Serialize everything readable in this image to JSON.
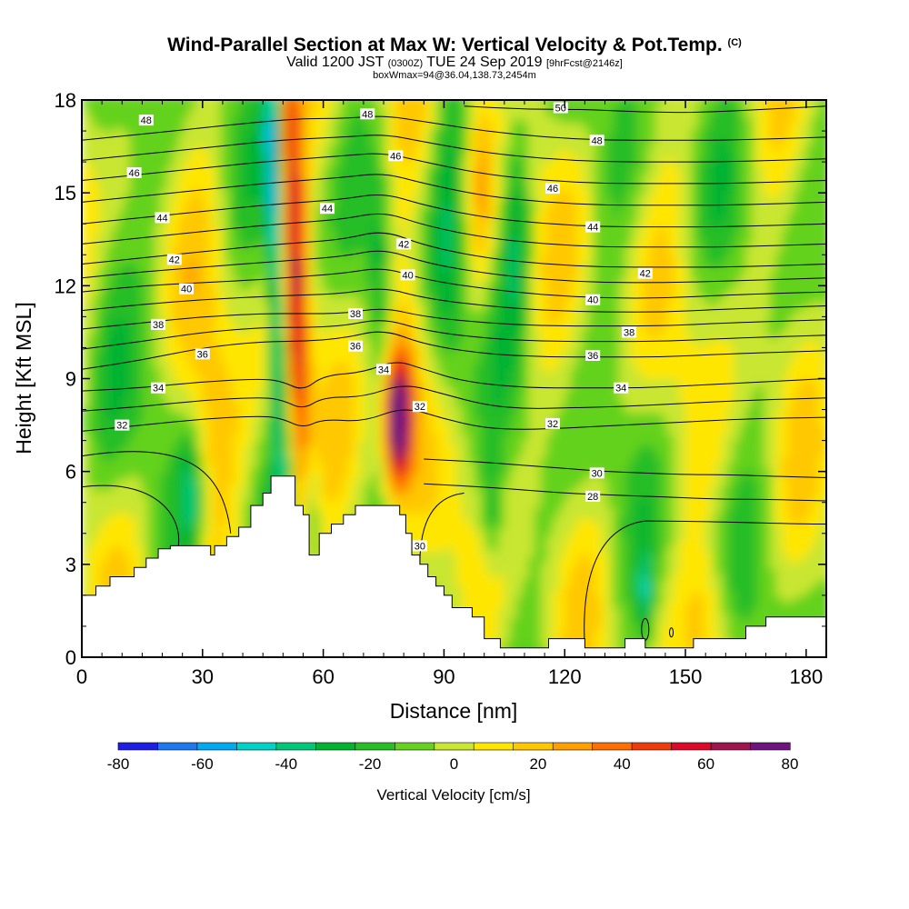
{
  "chart_data": {
    "type": "heatmap",
    "title": "Wind-Parallel Section at Max W: Vertical Velocity & Pot.Temp.",
    "title_mark": "(C)",
    "subtitle_main": "Valid 1200 JST",
    "subtitle_utc": "(0300Z)",
    "subtitle_date": "TUE 24 Sep 2019",
    "subtitle_fcst": "[9hrFcst@2146z]",
    "subtitle2": "boxWmax=94@36.04,138.73,2454m",
    "xlabel": "Distance [nm]",
    "ylabel": "Height [Kft MSL]",
    "xlim": [
      0,
      185
    ],
    "ylim": [
      0,
      18
    ],
    "x_ticks": [
      0,
      30,
      60,
      90,
      120,
      150,
      180
    ],
    "y_ticks": [
      0,
      3,
      6,
      9,
      12,
      15,
      18
    ],
    "fill_variable": "Vertical Velocity [cm/s]",
    "contour_variable": "Potential Temperature (C)",
    "colorbar": {
      "label": "Vertical Velocity [cm/s]",
      "ticks": [
        -80,
        -60,
        -40,
        -20,
        0,
        20,
        40,
        60,
        80
      ],
      "levels": [
        -80,
        -70,
        -60,
        -50,
        -40,
        -30,
        -20,
        -10,
        0,
        10,
        20,
        30,
        40,
        50,
        60,
        70,
        80
      ],
      "colors": [
        "#1e1ee6",
        "#1e78f0",
        "#00aaf0",
        "#00d2c8",
        "#00c878",
        "#00b432",
        "#28be28",
        "#64d21e",
        "#c8e632",
        "#ffe600",
        "#ffc800",
        "#ffa000",
        "#ff6e00",
        "#f03c0a",
        "#dc0a28",
        "#a01450",
        "#6e147d"
      ]
    },
    "theta_contours": [
      {
        "level": 28,
        "label": "28",
        "x": [
          85,
          100,
          110,
          120,
          130,
          140,
          150,
          160,
          170,
          185
        ],
        "y": [
          5.6,
          5.5,
          5.4,
          5.3,
          5.25,
          5.2,
          5.15,
          5.1,
          5.1,
          5.05
        ]
      },
      {
        "level": 30,
        "label": "30",
        "x": [
          85,
          100,
          110,
          120,
          130,
          140,
          150,
          160,
          170,
          185
        ],
        "y": [
          6.4,
          6.3,
          6.2,
          6.1,
          6.0,
          5.95,
          5.9,
          5.9,
          5.85,
          5.8
        ]
      },
      {
        "level": 32,
        "label": "32",
        "x": [
          0,
          15,
          30,
          45,
          50,
          55,
          60,
          70,
          80,
          90,
          100,
          110,
          120,
          135,
          150,
          165,
          185
        ],
        "y": [
          7.3,
          7.5,
          7.7,
          7.8,
          7.7,
          7.4,
          7.7,
          7.6,
          8.1,
          7.7,
          7.4,
          7.35,
          7.4,
          7.5,
          7.6,
          7.7,
          7.75
        ]
      },
      {
        "level": 34,
        "label": "34",
        "x": [
          0,
          15,
          30,
          45,
          50,
          55,
          60,
          70,
          78,
          85,
          95,
          110,
          125,
          140,
          155,
          170,
          185
        ],
        "y": [
          8.6,
          8.7,
          8.9,
          9.0,
          8.9,
          8.6,
          9.1,
          9.2,
          9.6,
          9.3,
          8.9,
          8.7,
          8.7,
          8.7,
          8.8,
          8.9,
          9.0
        ]
      },
      {
        "level": 36,
        "label": "36",
        "x": [
          0,
          15,
          30,
          45,
          55,
          65,
          75,
          85,
          100,
          115,
          130,
          145,
          160,
          185
        ],
        "y": [
          9.3,
          9.6,
          10.0,
          10.2,
          10.2,
          10.3,
          10.6,
          10.1,
          9.8,
          9.7,
          9.7,
          9.7,
          9.8,
          9.9
        ]
      },
      {
        "level": 38,
        "label": "38",
        "x": [
          0,
          15,
          30,
          45,
          55,
          65,
          75,
          85,
          100,
          115,
          130,
          145,
          160,
          185
        ],
        "y": [
          10.6,
          10.8,
          11.0,
          11.1,
          11.1,
          11.1,
          11.3,
          11.0,
          10.8,
          10.7,
          10.7,
          10.7,
          10.8,
          10.9
        ]
      },
      {
        "level": 40,
        "label": "40",
        "x": [
          0,
          15,
          30,
          45,
          55,
          65,
          75,
          85,
          100,
          115,
          130,
          145,
          160,
          185
        ],
        "y": [
          11.8,
          12.0,
          12.1,
          12.2,
          12.3,
          12.4,
          12.6,
          12.2,
          11.9,
          11.7,
          11.6,
          11.6,
          11.7,
          11.8
        ]
      },
      {
        "level": 42,
        "label": "42",
        "x": [
          0,
          15,
          30,
          45,
          55,
          65,
          75,
          85,
          100,
          115,
          130,
          145,
          160,
          185
        ],
        "y": [
          12.7,
          12.9,
          13.1,
          13.3,
          13.4,
          13.5,
          13.8,
          13.3,
          12.9,
          12.7,
          12.6,
          12.6,
          12.6,
          12.7
        ]
      },
      {
        "level": 44,
        "label": "44",
        "x": [
          0,
          15,
          30,
          45,
          55,
          65,
          75,
          85,
          100,
          115,
          130,
          145,
          160,
          185
        ],
        "y": [
          14.0,
          14.2,
          14.4,
          14.6,
          14.7,
          14.8,
          15.0,
          14.6,
          14.2,
          14.0,
          13.9,
          13.9,
          13.9,
          14.0
        ]
      },
      {
        "level": 46,
        "label": "46",
        "x": [
          0,
          15,
          30,
          45,
          55,
          65,
          75,
          85,
          100,
          115,
          130,
          145,
          160,
          185
        ],
        "y": [
          15.4,
          15.6,
          15.8,
          16.0,
          16.1,
          16.2,
          16.3,
          16.0,
          15.6,
          15.4,
          15.3,
          15.3,
          15.3,
          15.4
        ]
      },
      {
        "level": 48,
        "label": "48",
        "x": [
          0,
          15,
          30,
          45,
          55,
          65,
          75,
          85,
          100,
          115,
          130,
          145,
          160,
          185
        ],
        "y": [
          16.7,
          16.9,
          17.1,
          17.3,
          17.4,
          17.4,
          17.5,
          17.3,
          17.0,
          16.8,
          16.7,
          16.7,
          16.7,
          16.8
        ]
      },
      {
        "level": 50,
        "label": "50",
        "x": [
          95,
          110,
          125,
          140,
          155,
          170,
          185
        ],
        "y": [
          17.8,
          17.7,
          17.7,
          17.6,
          17.6,
          17.7,
          17.8
        ]
      }
    ],
    "contour_labels": [
      {
        "text": "48",
        "x": 16,
        "y": 17.35
      },
      {
        "text": "48",
        "x": 71,
        "y": 17.55
      },
      {
        "text": "50",
        "x": 119,
        "y": 17.75
      },
      {
        "text": "48",
        "x": 128,
        "y": 16.7
      },
      {
        "text": "46",
        "x": 13,
        "y": 15.65
      },
      {
        "text": "46",
        "x": 78,
        "y": 16.2
      },
      {
        "text": "46",
        "x": 117,
        "y": 15.15
      },
      {
        "text": "44",
        "x": 20,
        "y": 14.2
      },
      {
        "text": "44",
        "x": 61,
        "y": 14.5
      },
      {
        "text": "44",
        "x": 127,
        "y": 13.9
      },
      {
        "text": "42",
        "x": 23,
        "y": 12.85
      },
      {
        "text": "42",
        "x": 80,
        "y": 13.35
      },
      {
        "text": "42",
        "x": 140,
        "y": 12.4
      },
      {
        "text": "40",
        "x": 26,
        "y": 11.9
      },
      {
        "text": "40",
        "x": 81,
        "y": 12.35
      },
      {
        "text": "40",
        "x": 127,
        "y": 11.55
      },
      {
        "text": "38",
        "x": 19,
        "y": 10.75
      },
      {
        "text": "38",
        "x": 68,
        "y": 11.1
      },
      {
        "text": "38",
        "x": 136,
        "y": 10.5
      },
      {
        "text": "36",
        "x": 30,
        "y": 9.8
      },
      {
        "text": "36",
        "x": 68,
        "y": 10.05
      },
      {
        "text": "36",
        "x": 127,
        "y": 9.75
      },
      {
        "text": "34",
        "x": 19,
        "y": 8.7
      },
      {
        "text": "34",
        "x": 75,
        "y": 9.3
      },
      {
        "text": "34",
        "x": 134,
        "y": 8.7
      },
      {
        "text": "32",
        "x": 10,
        "y": 7.5
      },
      {
        "text": "32",
        "x": 84,
        "y": 8.1
      },
      {
        "text": "32",
        "x": 117,
        "y": 7.55
      },
      {
        "text": "30",
        "x": 128,
        "y": 5.95
      },
      {
        "text": "28",
        "x": 127,
        "y": 5.2
      },
      {
        "text": "30",
        "x": 84,
        "y": 3.6
      }
    ],
    "terrain": {
      "x": [
        0,
        3.5,
        7,
        10,
        13,
        16,
        19,
        22,
        25,
        32,
        33,
        36,
        39,
        42,
        45,
        47,
        52,
        53,
        55,
        56.5,
        59,
        62,
        65,
        68,
        71,
        78,
        79,
        80.5,
        82,
        84,
        86,
        88,
        90,
        92,
        97,
        100,
        104,
        110,
        116,
        120,
        125,
        135,
        140,
        145,
        150,
        152,
        160,
        165,
        170,
        175,
        180,
        185
      ],
      "y": [
        2.0,
        2.3,
        2.6,
        2.6,
        2.9,
        3.2,
        3.5,
        3.6,
        3.6,
        3.3,
        3.6,
        3.9,
        4.2,
        4.9,
        5.3,
        5.85,
        5.85,
        4.9,
        4.6,
        3.3,
        4.0,
        4.3,
        4.6,
        4.9,
        4.9,
        4.9,
        4.6,
        4.0,
        3.3,
        3.0,
        2.6,
        2.3,
        2.0,
        1.6,
        1.3,
        0.6,
        0.3,
        0.3,
        0.6,
        0.6,
        0.3,
        0.6,
        0.3,
        0.3,
        0.3,
        0.6,
        0.6,
        1.0,
        1.3,
        1.3,
        1.3,
        1.3
      ]
    },
    "features": {
      "updraft_core": {
        "x": 78,
        "y": 7.5,
        "max_cm_s": 94
      },
      "updraft_column": {
        "x": 53,
        "y_range": [
          5.5,
          18
        ]
      },
      "downdraft_column": {
        "x": 48,
        "y_range": [
          6,
          18
        ]
      }
    }
  }
}
